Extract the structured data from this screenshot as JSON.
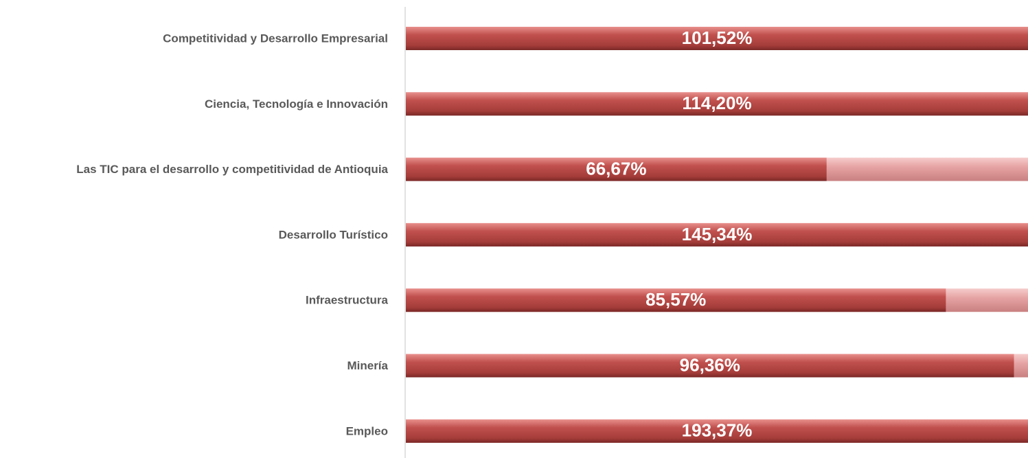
{
  "chart_data": {
    "type": "bar",
    "orientation": "horizontal",
    "categories": [
      "Competitividad y Desarrollo Empresarial",
      "Ciencia, Tecnología e Innovación",
      "Las TIC para el desarrollo y competitividad de Antioquia",
      "Desarrollo Turístico",
      "Infraestructura",
      "Minería",
      "Empleo"
    ],
    "values": [
      101.52,
      114.2,
      66.67,
      145.34,
      85.57,
      96.36,
      193.37
    ],
    "value_labels": [
      "101,52%",
      "114,20%",
      "66,67%",
      "145,34%",
      "85,57%",
      "96,36%",
      "193,37%"
    ],
    "color": "#c0504d",
    "xlim": [
      0,
      100
    ]
  }
}
